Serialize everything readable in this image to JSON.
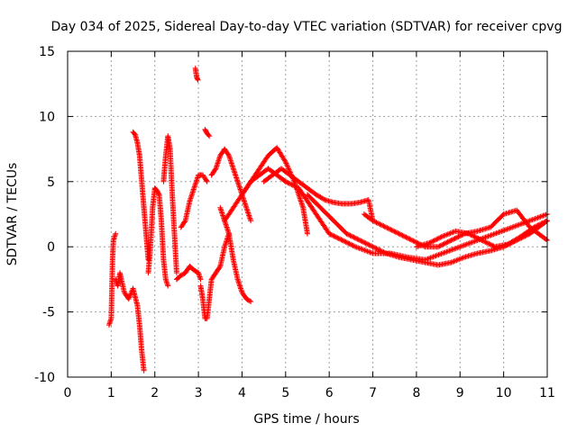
{
  "chart_data": {
    "type": "scatter",
    "title": "Day 034 of 2025, Sidereal Day-to-day VTEC variation (SDTVAR) for receiver cpvg",
    "xlabel": "GPS time / hours",
    "ylabel": "SDTVAR / TECUs",
    "xlim": [
      0,
      11
    ],
    "ylim": [
      -10,
      15
    ],
    "xticks": [
      0,
      1,
      2,
      3,
      4,
      5,
      6,
      7,
      8,
      9,
      10,
      11
    ],
    "yticks": [
      -10,
      -5,
      0,
      5,
      10,
      15
    ],
    "grid": true,
    "marker": "+",
    "color": "#ff0000",
    "series": [
      {
        "name": "trace-a",
        "x": [
          0.95,
          1.0,
          1.03,
          1.05,
          1.1
        ],
        "y": [
          -6.0,
          -5.5,
          -1.0,
          0.5,
          1.0
        ]
      },
      {
        "name": "trace-b",
        "x": [
          1.1,
          1.15,
          1.2,
          1.3,
          1.4,
          1.5,
          1.6,
          1.65,
          1.7,
          1.75
        ],
        "y": [
          -2.5,
          -3.0,
          -2.0,
          -3.5,
          -4.0,
          -3.2,
          -4.5,
          -6.0,
          -8.0,
          -9.5
        ]
      },
      {
        "name": "trace-c",
        "x": [
          1.5,
          1.55,
          1.6,
          1.65,
          1.7,
          1.75,
          1.8,
          1.85
        ],
        "y": [
          8.8,
          8.6,
          8.0,
          7.0,
          5.0,
          3.0,
          1.0,
          -1.0
        ]
      },
      {
        "name": "trace-d",
        "x": [
          1.85,
          1.9,
          1.95,
          2.0,
          2.05,
          2.1,
          2.15,
          2.2,
          2.25,
          2.3
        ],
        "y": [
          -2.0,
          0.0,
          3.0,
          4.5,
          4.3,
          4.0,
          2.0,
          -1.0,
          -2.5,
          -3.0
        ]
      },
      {
        "name": "trace-e",
        "x": [
          2.2,
          2.25,
          2.3,
          2.35,
          2.4,
          2.45,
          2.5
        ],
        "y": [
          5.0,
          7.0,
          8.5,
          7.5,
          4.0,
          1.0,
          -2.0
        ]
      },
      {
        "name": "trace-f",
        "x": [
          2.5,
          2.6,
          2.7,
          2.8,
          2.9,
          3.0,
          3.05
        ],
        "y": [
          -2.5,
          -2.2,
          -2.0,
          -1.5,
          -1.8,
          -2.0,
          -2.5
        ]
      },
      {
        "name": "trace-g",
        "x": [
          2.6,
          2.7,
          2.8,
          2.9,
          3.0,
          3.1,
          3.2
        ],
        "y": [
          1.5,
          2.0,
          3.5,
          4.5,
          5.5,
          5.5,
          5.0
        ]
      },
      {
        "name": "trace-h",
        "x": [
          2.93,
          2.96,
          2.99
        ],
        "y": [
          13.7,
          13.0,
          12.8
        ]
      },
      {
        "name": "trace-i",
        "x": [
          3.15,
          3.2,
          3.25
        ],
        "y": [
          9.0,
          8.7,
          8.5
        ]
      },
      {
        "name": "trace-j",
        "x": [
          3.05,
          3.1,
          3.15,
          3.2,
          3.3,
          3.4,
          3.5,
          3.6,
          3.7
        ],
        "y": [
          -3.0,
          -4.0,
          -5.5,
          -5.5,
          -2.5,
          -2.0,
          -1.5,
          0.0,
          1.0
        ]
      },
      {
        "name": "trace-k",
        "x": [
          3.3,
          3.4,
          3.5,
          3.6,
          3.7,
          3.8,
          3.9,
          4.0,
          4.1,
          4.2
        ],
        "y": [
          5.5,
          6.0,
          7.0,
          7.5,
          7.0,
          6.0,
          5.0,
          4.0,
          3.0,
          2.0
        ]
      },
      {
        "name": "trace-l",
        "x": [
          3.5,
          3.6,
          3.7,
          3.8,
          3.9,
          4.0,
          4.1,
          4.2
        ],
        "y": [
          3.0,
          2.0,
          1.0,
          -1.0,
          -2.5,
          -3.5,
          -4.0,
          -4.2
        ]
      },
      {
        "name": "trace-m",
        "x": [
          3.6,
          3.8,
          4.0,
          4.2,
          4.4,
          4.6,
          4.8,
          5.0
        ],
        "y": [
          2.0,
          3.0,
          4.0,
          5.0,
          5.5,
          6.0,
          5.5,
          5.0
        ]
      },
      {
        "name": "trace-n",
        "x": [
          4.0,
          4.2,
          4.4,
          4.6,
          4.8,
          5.0,
          5.2,
          5.4,
          5.5
        ],
        "y": [
          4.0,
          5.0,
          6.0,
          7.0,
          7.6,
          6.5,
          5.0,
          3.0,
          1.0
        ]
      },
      {
        "name": "trace-o",
        "x": [
          4.5,
          4.7,
          4.9,
          5.1,
          5.3,
          5.5,
          5.7,
          5.9,
          6.1,
          6.3,
          6.5,
          6.7,
          6.9,
          7.0
        ],
        "y": [
          5.0,
          5.5,
          6.0,
          5.5,
          5.0,
          4.5,
          4.0,
          3.6,
          3.4,
          3.3,
          3.3,
          3.4,
          3.6,
          2.0
        ]
      },
      {
        "name": "trace-p",
        "x": [
          5.0,
          5.3,
          5.6,
          6.0,
          6.3,
          6.6,
          7.0,
          7.4,
          7.8,
          8.2,
          8.6,
          9.0,
          9.4,
          9.8,
          10.2,
          10.6,
          11.0
        ],
        "y": [
          5.0,
          4.5,
          3.0,
          1.0,
          0.5,
          0.0,
          -0.5,
          -0.5,
          -0.8,
          -1.0,
          -0.5,
          0.0,
          0.5,
          1.0,
          1.5,
          2.0,
          2.5
        ]
      },
      {
        "name": "trace-q",
        "x": [
          5.5,
          5.8,
          6.1,
          6.4,
          6.7,
          7.0,
          7.3,
          7.6,
          7.9,
          8.2,
          8.5,
          8.8,
          9.1,
          9.4,
          9.7,
          10.0,
          10.3,
          10.6,
          11.0
        ],
        "y": [
          4.0,
          3.0,
          2.0,
          1.0,
          0.5,
          0.0,
          -0.5,
          -0.8,
          -1.0,
          -1.2,
          -1.4,
          -1.2,
          -0.8,
          -0.5,
          -0.3,
          0.0,
          0.5,
          1.0,
          2.0
        ]
      },
      {
        "name": "trace-r",
        "x": [
          6.8,
          7.0,
          7.3,
          7.6,
          7.9,
          8.2,
          8.5,
          8.8,
          9.1,
          9.4,
          9.7,
          10.0,
          10.3,
          10.6,
          11.0
        ],
        "y": [
          2.5,
          2.0,
          1.5,
          1.0,
          0.5,
          0.0,
          0.0,
          0.5,
          1.0,
          1.2,
          1.5,
          2.5,
          2.8,
          1.5,
          0.5
        ]
      },
      {
        "name": "trace-s",
        "x": [
          8.0,
          8.3,
          8.6,
          8.9,
          9.2,
          9.5,
          9.8,
          10.1,
          10.4,
          10.7,
          11.0
        ],
        "y": [
          0.0,
          0.3,
          0.8,
          1.2,
          1.0,
          0.5,
          0.0,
          0.2,
          0.8,
          1.5,
          2.0
        ]
      }
    ]
  }
}
